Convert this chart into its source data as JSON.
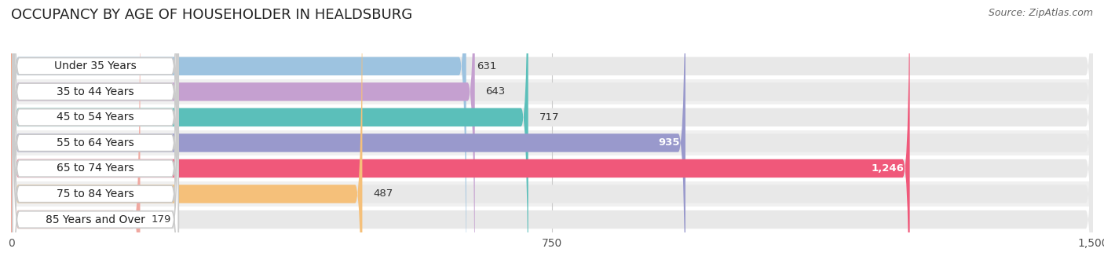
{
  "title": "OCCUPANCY BY AGE OF HOUSEHOLDER IN HEALDSBURG",
  "source": "Source: ZipAtlas.com",
  "categories": [
    "Under 35 Years",
    "35 to 44 Years",
    "45 to 54 Years",
    "55 to 64 Years",
    "65 to 74 Years",
    "75 to 84 Years",
    "85 Years and Over"
  ],
  "values": [
    631,
    643,
    717,
    935,
    1246,
    487,
    179
  ],
  "bar_colors": [
    "#9dc3e0",
    "#c5a0d0",
    "#5bbfba",
    "#9999cc",
    "#f0587a",
    "#f5c07a",
    "#f0a8a0"
  ],
  "xlim_max": 1500,
  "xticks": [
    0,
    750,
    1500
  ],
  "bar_height": 0.72,
  "row_colors": [
    "#ffffff",
    "#f0f0f0"
  ],
  "bar_bg_color": "#e8e8e8",
  "white_label_bg": "#ffffff",
  "title_fontsize": 13,
  "label_fontsize": 10,
  "value_fontsize": 9.5,
  "source_fontsize": 9
}
